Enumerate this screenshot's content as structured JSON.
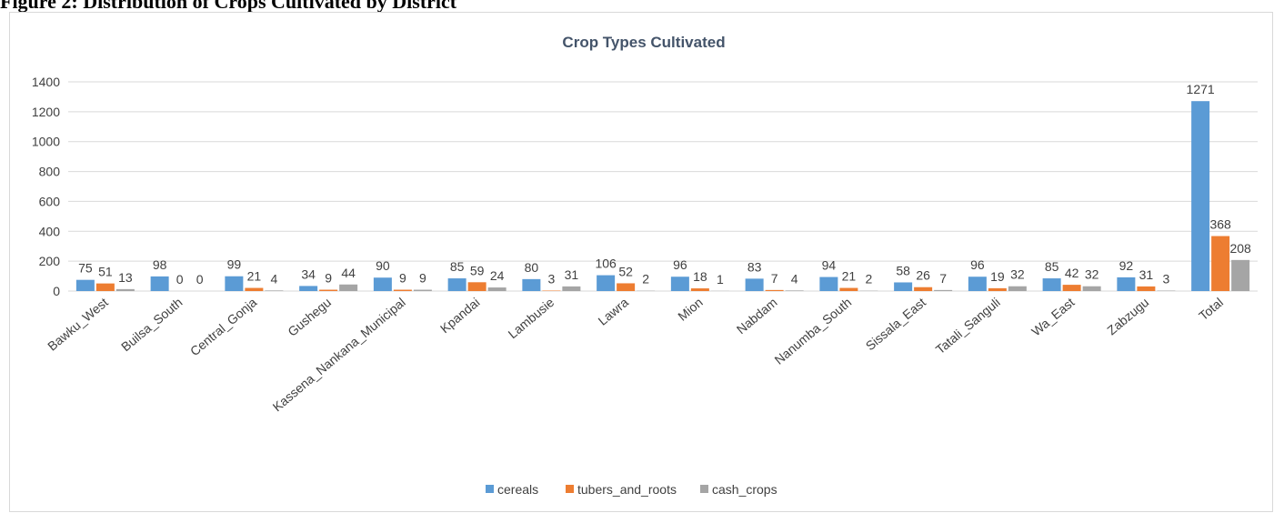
{
  "figure_caption": "Figure 2: Distribution of Crops Cultivated by District",
  "chart_data": {
    "type": "bar",
    "title": "Crop Types Cultivated",
    "xlabel": "",
    "ylabel": "",
    "ylim": [
      0,
      1400
    ],
    "yticks": [
      0,
      200,
      400,
      600,
      800,
      1000,
      1200,
      1400
    ],
    "grid": true,
    "legend_position": "bottom",
    "categories": [
      "Bawku_West",
      "Builsa_South",
      "Central_Gonja",
      "Gushegu",
      "Kassena_Nankana_Municipal",
      "Kpandai",
      "Lambusie",
      "Lawra",
      "Mion",
      "Nabdam",
      "Nanumba_South",
      "Sissala_East",
      "Tatali_Sanguli",
      "Wa_East",
      "Zabzugu",
      "Total"
    ],
    "series": [
      {
        "name": "cereals",
        "color": "#5b9bd5",
        "values": [
          75,
          98,
          99,
          34,
          90,
          85,
          80,
          106,
          96,
          83,
          94,
          58,
          96,
          85,
          92,
          1271
        ]
      },
      {
        "name": "tubers_and_roots",
        "color": "#ed7d31",
        "values": [
          51,
          0,
          21,
          9,
          9,
          59,
          3,
          52,
          18,
          7,
          21,
          26,
          19,
          42,
          31,
          368
        ]
      },
      {
        "name": "cash_crops",
        "color": "#a5a5a5",
        "values": [
          13,
          0,
          4,
          44,
          9,
          24,
          31,
          2,
          1,
          4,
          2,
          7,
          32,
          32,
          3,
          208
        ]
      }
    ]
  }
}
